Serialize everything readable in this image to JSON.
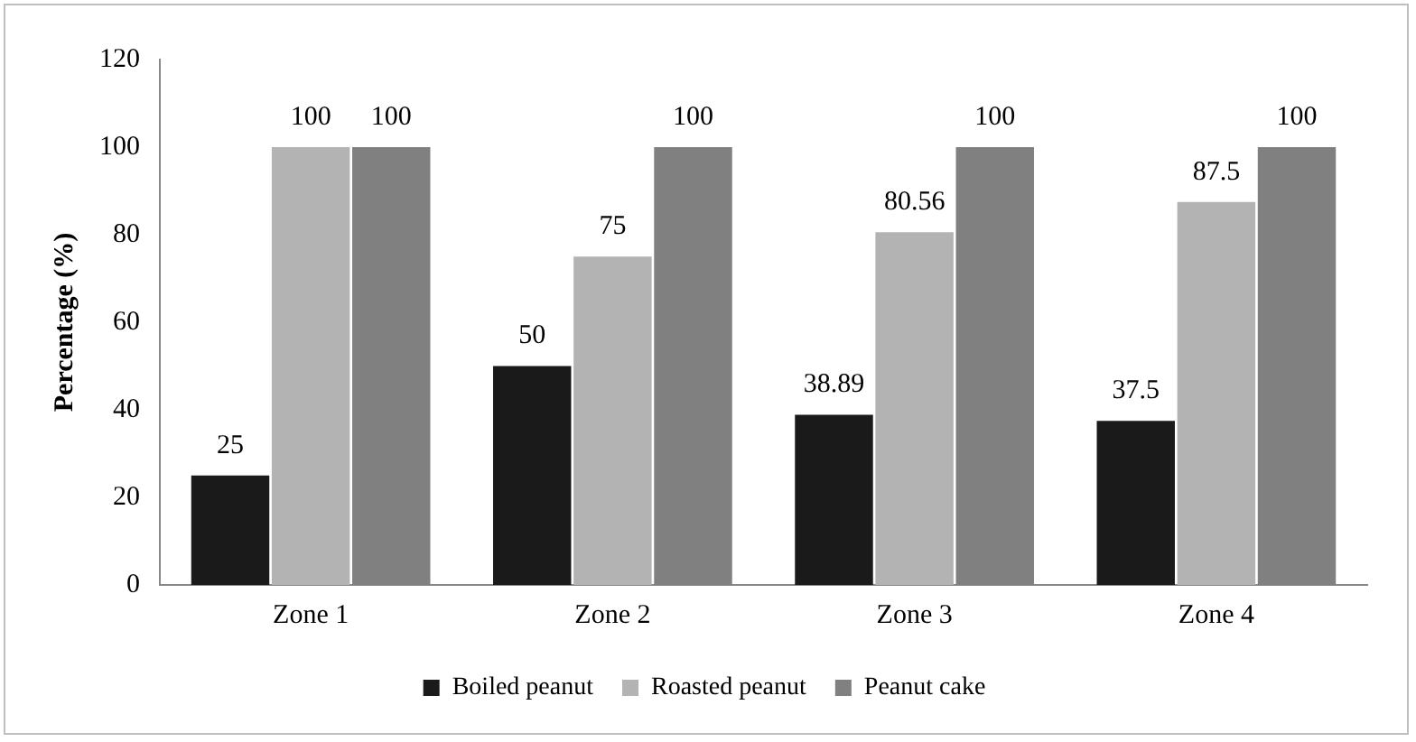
{
  "chart_data": {
    "type": "bar",
    "ylabel": "Percentage (%)",
    "categories": [
      "Zone 1",
      "Zone 2",
      "Zone 3",
      "Zone 4"
    ],
    "series": [
      {
        "name": "Boiled peanut",
        "color": "#1a1a1a",
        "values": [
          25,
          50,
          38.89,
          37.5
        ]
      },
      {
        "name": "Roasted peanut",
        "color": "#b3b3b3",
        "values": [
          100,
          75,
          80.56,
          87.5
        ]
      },
      {
        "name": "Peanut cake",
        "color": "#808080",
        "values": [
          100,
          100,
          100,
          100
        ]
      }
    ],
    "ylim": [
      0,
      120
    ],
    "yticks": [
      0,
      20,
      40,
      60,
      80,
      100,
      120
    ],
    "grid": false,
    "legend": "bottom",
    "data_labels": true
  }
}
